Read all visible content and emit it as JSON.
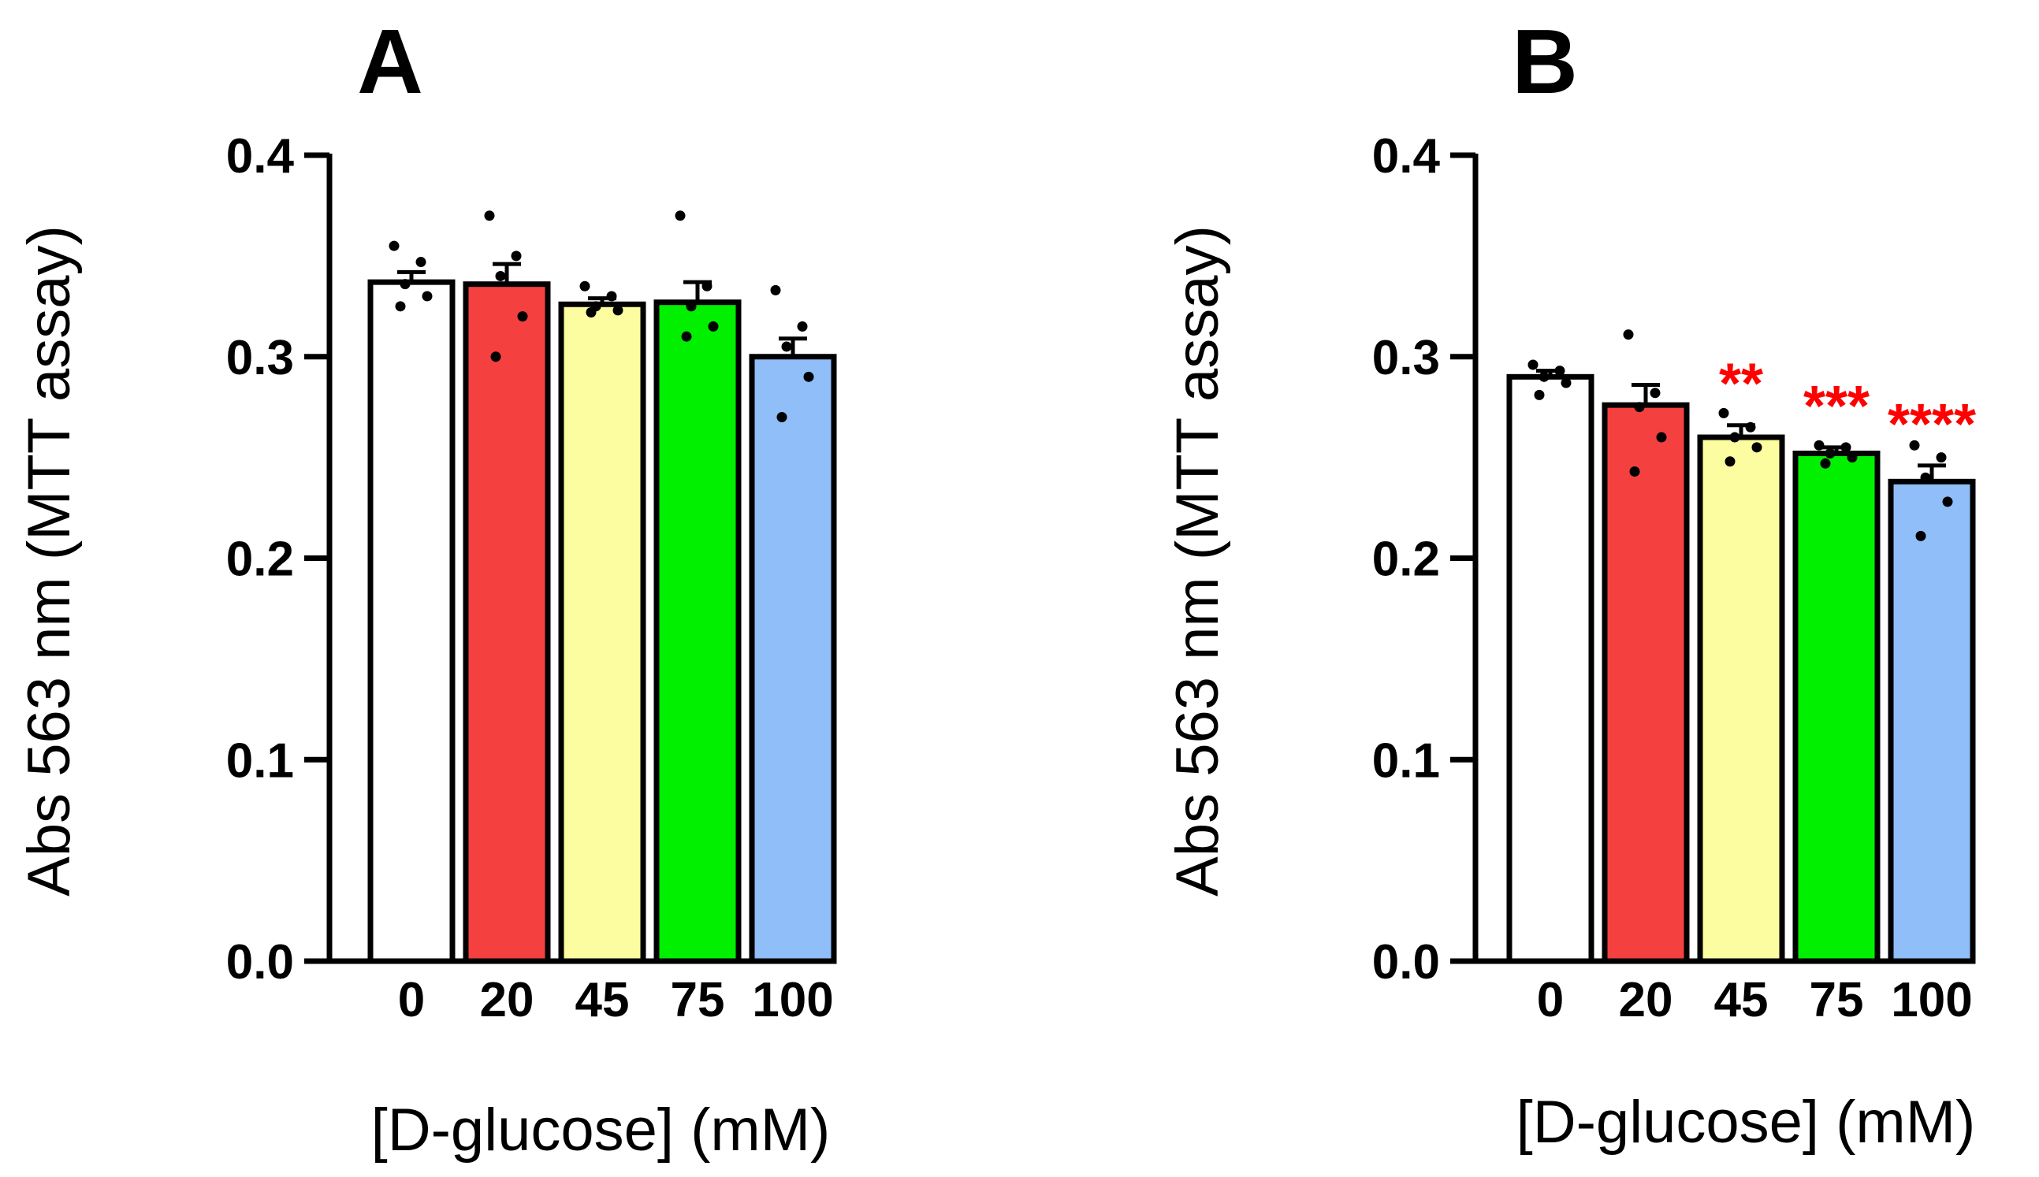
{
  "chart_data": [
    {
      "panel": "A",
      "type": "bar",
      "categories": [
        "0",
        "20",
        "45",
        "75",
        "100"
      ],
      "values": [
        0.337,
        0.336,
        0.326,
        0.327,
        0.3
      ],
      "sem": [
        0.005,
        0.01,
        0.003,
        0.01,
        0.009
      ],
      "points": [
        [
          0.355,
          0.347,
          0.336,
          0.33,
          0.325
        ],
        [
          0.37,
          0.35,
          0.34,
          0.32,
          0.3
        ],
        [
          0.335,
          0.33,
          0.325,
          0.323,
          0.322
        ],
        [
          0.37,
          0.335,
          0.325,
          0.315,
          0.31
        ],
        [
          0.333,
          0.315,
          0.305,
          0.29,
          0.27
        ]
      ],
      "colors": [
        "#ffffff",
        "#f54040",
        "#fcfca0",
        "#00f000",
        "#8fbef8"
      ],
      "ylabel": "Abs 563 nm (MTT assay)",
      "xlabel": "[D-glucose] (mM)",
      "ylim": [
        0,
        0.4
      ],
      "yticks": [
        "0.0",
        "0.1",
        "0.2",
        "0.3",
        "0.4"
      ],
      "annotations": [
        "",
        "",
        "",
        "",
        ""
      ]
    },
    {
      "panel": "B",
      "type": "bar",
      "categories": [
        "0",
        "20",
        "45",
        "75",
        "100"
      ],
      "values": [
        0.29,
        0.276,
        0.26,
        0.252,
        0.238
      ],
      "sem": [
        0.003,
        0.01,
        0.006,
        0.003,
        0.008
      ],
      "points": [
        [
          0.296,
          0.293,
          0.29,
          0.287,
          0.281
        ],
        [
          0.311,
          0.282,
          0.275,
          0.26,
          0.243
        ],
        [
          0.272,
          0.265,
          0.26,
          0.255,
          0.248
        ],
        [
          0.256,
          0.255,
          0.252,
          0.25,
          0.247
        ],
        [
          0.256,
          0.25,
          0.24,
          0.228,
          0.211
        ]
      ],
      "colors": [
        "#ffffff",
        "#f54040",
        "#fcfca0",
        "#00f000",
        "#8fbef8"
      ],
      "ylabel": "Abs 563 nm (MTT assay)",
      "xlabel": "[D-glucose] (mM)",
      "ylim": [
        0,
        0.4
      ],
      "yticks": [
        "0.0",
        "0.1",
        "0.2",
        "0.3",
        "0.4"
      ],
      "annotations": [
        "",
        "",
        "**",
        "***",
        "****"
      ],
      "annotation_color": "#ff0000"
    }
  ]
}
